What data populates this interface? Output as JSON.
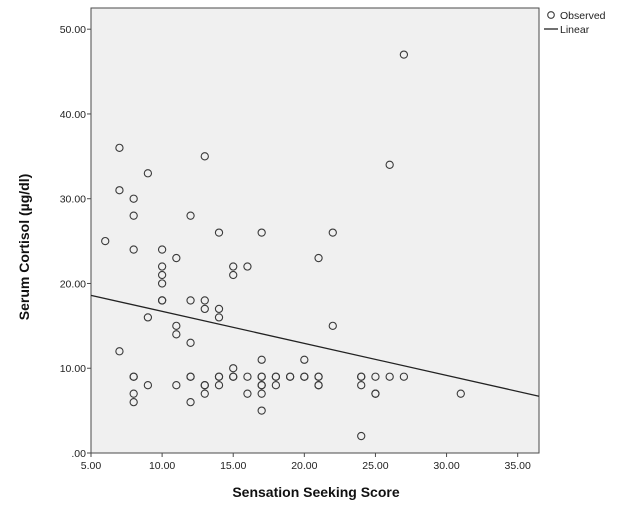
{
  "chart_data": {
    "type": "scatter",
    "xlabel": "Sensation Seeking Score",
    "ylabel": "Serum Cortisol (µg/dl)",
    "xlim": [
      5,
      36.5
    ],
    "ylim": [
      0,
      52.5
    ],
    "x_ticks": [
      5,
      10,
      15,
      20,
      25,
      30,
      35
    ],
    "x_tick_labels": [
      "5.00",
      "10.00",
      "15.00",
      "20.00",
      "25.00",
      "30.00",
      "35.00"
    ],
    "y_ticks": [
      0,
      10,
      20,
      30,
      40,
      50
    ],
    "y_tick_labels": [
      ".00",
      "10.00",
      "20.00",
      "30.00",
      "40.00",
      "50.00"
    ],
    "grid": false,
    "legend_position": "top-right",
    "legend": [
      {
        "label": "Observed",
        "marker": "circle"
      },
      {
        "label": "Linear",
        "marker": "line"
      }
    ],
    "series": [
      {
        "name": "Observed",
        "points": [
          [
            6,
            25
          ],
          [
            7,
            36
          ],
          [
            7,
            31
          ],
          [
            7,
            12
          ],
          [
            8,
            30
          ],
          [
            8,
            28
          ],
          [
            8,
            24
          ],
          [
            8,
            9
          ],
          [
            8,
            9
          ],
          [
            8,
            7
          ],
          [
            8,
            6
          ],
          [
            9,
            33
          ],
          [
            9,
            16
          ],
          [
            9,
            8
          ],
          [
            10,
            24
          ],
          [
            10,
            22
          ],
          [
            10,
            21
          ],
          [
            10,
            20
          ],
          [
            10,
            18
          ],
          [
            10,
            18
          ],
          [
            11,
            23
          ],
          [
            11,
            15
          ],
          [
            11,
            14
          ],
          [
            11,
            8
          ],
          [
            12,
            28
          ],
          [
            12,
            18
          ],
          [
            12,
            13
          ],
          [
            12,
            9
          ],
          [
            12,
            9
          ],
          [
            12,
            6
          ],
          [
            13,
            35
          ],
          [
            13,
            18
          ],
          [
            13,
            17
          ],
          [
            13,
            8
          ],
          [
            13,
            8
          ],
          [
            13,
            7
          ],
          [
            14,
            26
          ],
          [
            14,
            17
          ],
          [
            14,
            16
          ],
          [
            14,
            9
          ],
          [
            14,
            9
          ],
          [
            14,
            8
          ],
          [
            15,
            22
          ],
          [
            15,
            21
          ],
          [
            15,
            10
          ],
          [
            15,
            9
          ],
          [
            15,
            9
          ],
          [
            16,
            22
          ],
          [
            16,
            9
          ],
          [
            16,
            7
          ],
          [
            17,
            26
          ],
          [
            17,
            11
          ],
          [
            17,
            9
          ],
          [
            17,
            9
          ],
          [
            17,
            8
          ],
          [
            17,
            8
          ],
          [
            17,
            7
          ],
          [
            17,
            5
          ],
          [
            18,
            9
          ],
          [
            18,
            9
          ],
          [
            18,
            8
          ],
          [
            19,
            9
          ],
          [
            19,
            9
          ],
          [
            20,
            11
          ],
          [
            20,
            9
          ],
          [
            20,
            9
          ],
          [
            21,
            23
          ],
          [
            21,
            9
          ],
          [
            21,
            9
          ],
          [
            21,
            8
          ],
          [
            21,
            8
          ],
          [
            22,
            26
          ],
          [
            22,
            15
          ],
          [
            24,
            9
          ],
          [
            24,
            9
          ],
          [
            24,
            8
          ],
          [
            24,
            2
          ],
          [
            25,
            9
          ],
          [
            25,
            7
          ],
          [
            25,
            7
          ],
          [
            26,
            34
          ],
          [
            26,
            9
          ],
          [
            27,
            47
          ],
          [
            27,
            9
          ],
          [
            31,
            7
          ]
        ]
      }
    ],
    "fit_line": {
      "name": "Linear",
      "x": [
        5,
        36.5
      ],
      "y": [
        18.6,
        6.7
      ]
    }
  },
  "colors": {
    "plot_bg": "#f0f0f0",
    "plot_border": "#4a4a4a",
    "marker_stroke": "#3a3a3a",
    "fit_line": "#222222",
    "page_bg": "#ffffff"
  }
}
